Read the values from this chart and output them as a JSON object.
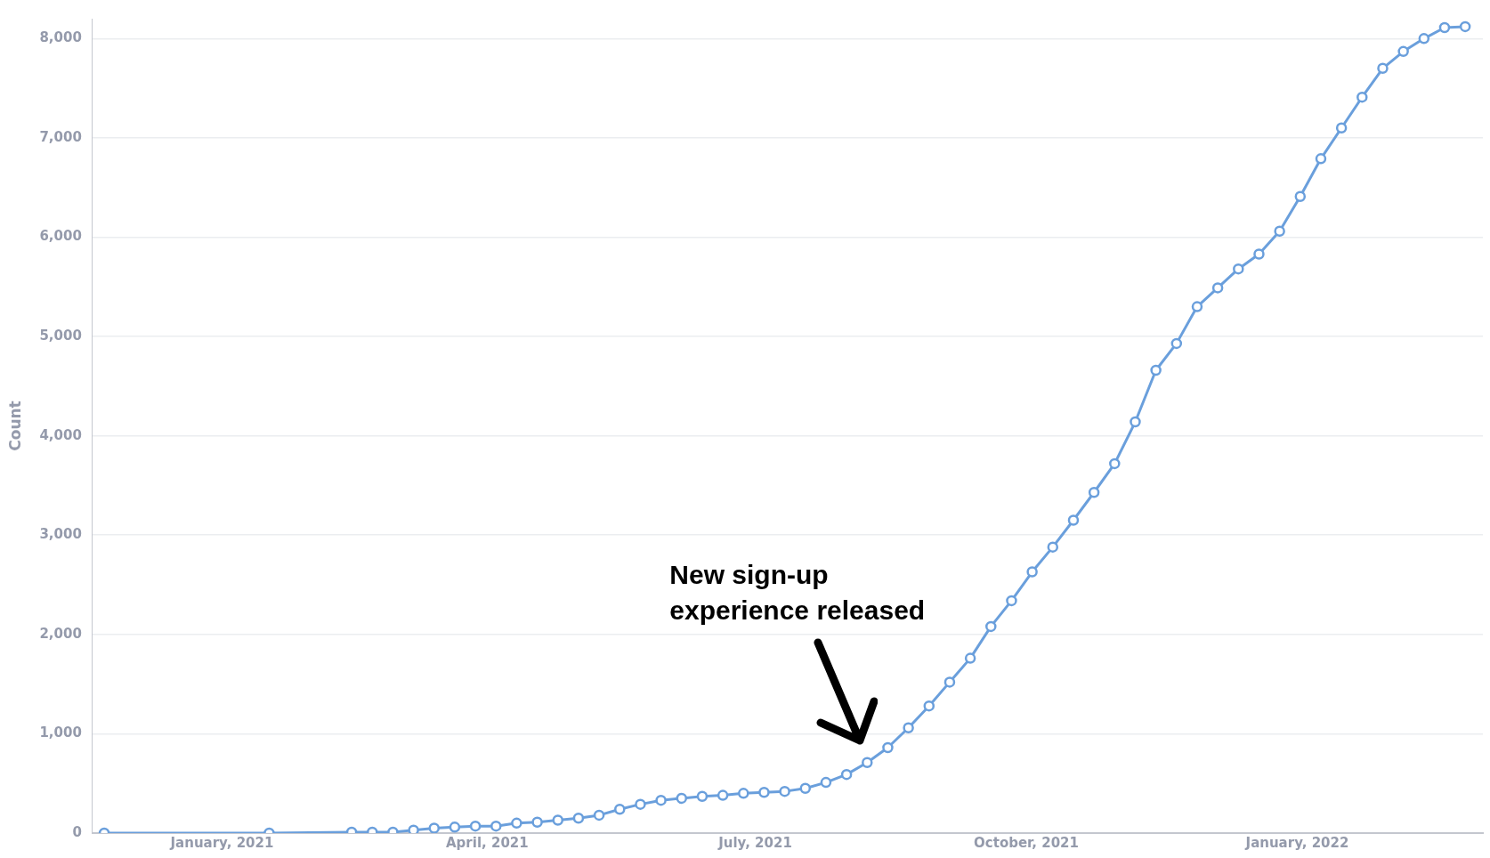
{
  "chart_data": {
    "type": "line",
    "ylabel": "Count",
    "x": [
      "2020-11-22",
      "2021-01-17",
      "2021-02-14",
      "2021-02-21",
      "2021-02-28",
      "2021-03-07",
      "2021-03-14",
      "2021-03-21",
      "2021-03-28",
      "2021-04-04",
      "2021-04-11",
      "2021-04-18",
      "2021-04-25",
      "2021-05-02",
      "2021-05-09",
      "2021-05-16",
      "2021-05-23",
      "2021-05-30",
      "2021-06-06",
      "2021-06-13",
      "2021-06-20",
      "2021-06-27",
      "2021-07-04",
      "2021-07-11",
      "2021-07-18",
      "2021-07-25",
      "2021-08-01",
      "2021-08-08",
      "2021-08-15",
      "2021-08-22",
      "2021-08-29",
      "2021-09-05",
      "2021-09-12",
      "2021-09-19",
      "2021-09-26",
      "2021-10-03",
      "2021-10-10",
      "2021-10-17",
      "2021-10-24",
      "2021-10-31",
      "2021-11-07",
      "2021-11-14",
      "2021-11-21",
      "2021-11-28",
      "2021-12-05",
      "2021-12-12",
      "2021-12-19",
      "2021-12-26",
      "2022-01-02",
      "2022-01-09",
      "2022-01-16",
      "2022-01-23",
      "2022-01-30",
      "2022-02-06",
      "2022-02-13",
      "2022-02-20",
      "2022-02-27"
    ],
    "series": [
      {
        "color": "#6a9fdc",
        "values": [
          0,
          0,
          10,
          10,
          10,
          30,
          50,
          60,
          70,
          70,
          100,
          110,
          130,
          150,
          180,
          240,
          290,
          330,
          350,
          370,
          380,
          400,
          410,
          420,
          450,
          510,
          590,
          710,
          860,
          1060,
          1280,
          1520,
          1760,
          2080,
          2340,
          2630,
          2880,
          3150,
          3430,
          3720,
          4140,
          4660,
          4930,
          5300,
          5490,
          5680,
          5830,
          6060,
          6410,
          6790,
          7100,
          7410,
          7700,
          7870,
          8000,
          8110,
          8120
        ]
      }
    ],
    "xlim": [
      "2020-11-18",
      "2022-03-05"
    ],
    "xticks": [
      {
        "value": "2021-01-01",
        "label": "January, 2021"
      },
      {
        "value": "2021-04-01",
        "label": "April, 2021"
      },
      {
        "value": "2021-07-01",
        "label": "July, 2021"
      },
      {
        "value": "2021-10-01",
        "label": "October, 2021"
      },
      {
        "value": "2022-01-01",
        "label": "January, 2022"
      }
    ],
    "ylim": [
      0,
      8200
    ],
    "yticks": [
      {
        "value": 0,
        "label": "0"
      },
      {
        "value": 1000,
        "label": "1,000"
      },
      {
        "value": 2000,
        "label": "2,000"
      },
      {
        "value": 3000,
        "label": "3,000"
      },
      {
        "value": 4000,
        "label": "4,000"
      },
      {
        "value": 5000,
        "label": "5,000"
      },
      {
        "value": 6000,
        "label": "6,000"
      },
      {
        "value": 7000,
        "label": "7,000"
      },
      {
        "value": 8000,
        "label": "8,000"
      }
    ],
    "grid": "y",
    "marker": "circle",
    "line_style": "solid",
    "annotations": [
      "New sign-up experience released"
    ]
  }
}
